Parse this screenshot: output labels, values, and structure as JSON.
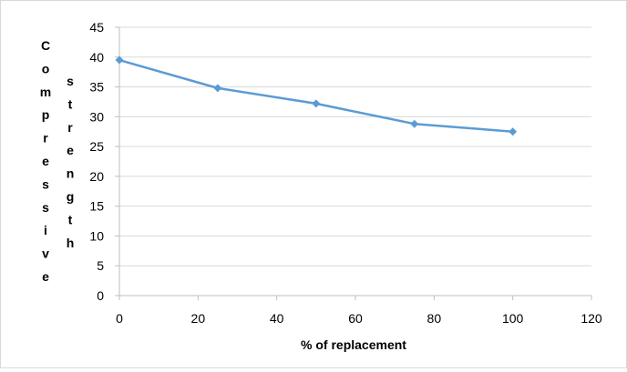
{
  "chart_data": {
    "type": "line",
    "x": [
      0,
      25,
      50,
      75,
      100
    ],
    "series": [
      {
        "values": [
          39.5,
          34.8,
          32.2,
          28.8,
          27.5
        ],
        "color": "#5b9bd5",
        "marker": "diamond"
      }
    ],
    "xlabel": "% of replacement",
    "ylabel_word1": "Compressive",
    "ylabel_word2": "strength",
    "xlim": [
      0,
      120
    ],
    "ylim": [
      0,
      45
    ],
    "xticks": [
      "0",
      "20",
      "40",
      "60",
      "80",
      "100",
      "120"
    ],
    "yticks": [
      "0",
      "5",
      "10",
      "15",
      "20",
      "25",
      "30",
      "35",
      "40",
      "45"
    ],
    "grid": "horizontal",
    "legend": "none",
    "colors": {
      "line": "#5b9bd5",
      "gridline": "#d9d9d9",
      "axis": "#bfbfbf",
      "frame": "#d9d9d9"
    }
  }
}
